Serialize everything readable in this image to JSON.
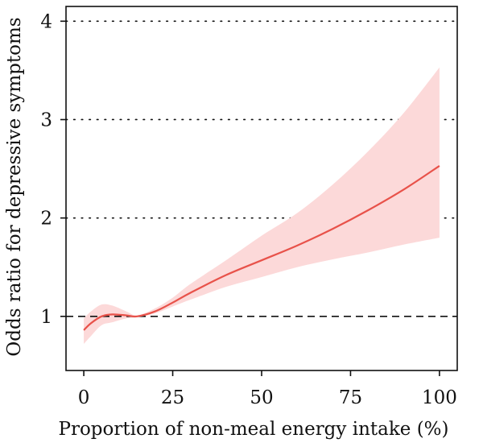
{
  "chart_data": {
    "type": "line",
    "title": "",
    "xlabel": "Proportion of non-meal energy intake (%)",
    "ylabel": "Odds ratio for depressive symptoms",
    "xlim": [
      -5,
      105
    ],
    "ylim": [
      0.45,
      4.15
    ],
    "xticks": [
      0,
      25,
      50,
      75,
      100
    ],
    "yticks": [
      1,
      2,
      3,
      4
    ],
    "xtick_labels": [
      "0",
      "25",
      "50",
      "75",
      "100"
    ],
    "ytick_labels": [
      "1",
      "2",
      "3",
      "4"
    ],
    "grid": "horizontal dotted",
    "reference_line": {
      "y": 1,
      "style": "dashed"
    },
    "series": [
      {
        "color": "#e8524a",
        "band_color": "#fcd9d9",
        "x": [
          0,
          2,
          5,
          8,
          12,
          15,
          20,
          25,
          30,
          40,
          50,
          60,
          70,
          80,
          90,
          100
        ],
        "y": [
          0.86,
          0.93,
          1.0,
          1.02,
          1.01,
          1.0,
          1.05,
          1.14,
          1.24,
          1.42,
          1.57,
          1.72,
          1.89,
          2.08,
          2.29,
          2.53
        ],
        "lower": [
          0.72,
          0.8,
          0.91,
          0.94,
          0.98,
          0.99,
          1.03,
          1.1,
          1.17,
          1.3,
          1.4,
          1.5,
          1.58,
          1.65,
          1.73,
          1.8
        ],
        "upper": [
          0.98,
          1.05,
          1.12,
          1.11,
          1.05,
          1.01,
          1.08,
          1.19,
          1.33,
          1.57,
          1.82,
          2.05,
          2.34,
          2.68,
          3.07,
          3.53
        ]
      }
    ]
  }
}
